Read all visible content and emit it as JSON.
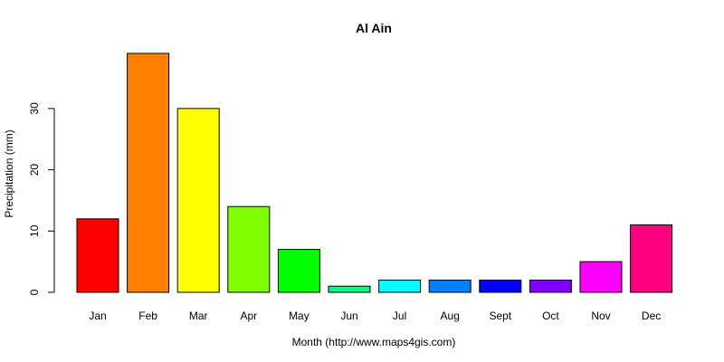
{
  "chart_data": {
    "type": "bar",
    "title": "Al Ain",
    "xlabel": "Month (http://www.maps4gis.com)",
    "ylabel": "Precipitation (mm)",
    "categories": [
      "Jan",
      "Feb",
      "Mar",
      "Apr",
      "May",
      "Jun",
      "Jul",
      "Aug",
      "Sept",
      "Oct",
      "Nov",
      "Dec"
    ],
    "values": [
      12,
      39,
      30,
      14,
      7,
      1,
      2,
      2,
      2,
      2,
      5,
      11
    ],
    "colors": [
      "#ff0000",
      "#ff8000",
      "#ffff00",
      "#80ff00",
      "#00ff00",
      "#00ff80",
      "#00ffff",
      "#0080ff",
      "#0000ff",
      "#8000ff",
      "#ff00ff",
      "#ff0080"
    ],
    "yticks": [
      0,
      10,
      20,
      30
    ],
    "ylim": [
      0,
      39
    ],
    "grid": false,
    "legend": "none"
  }
}
